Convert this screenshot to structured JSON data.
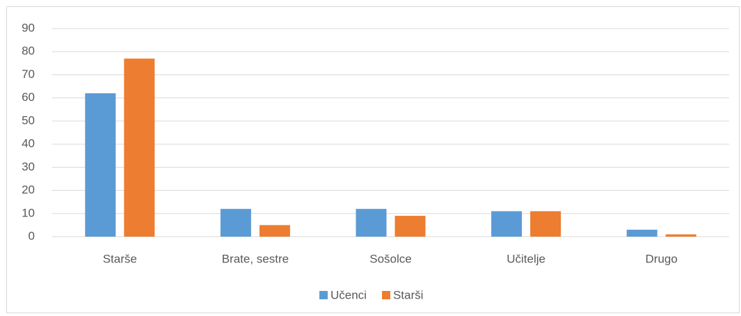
{
  "chart_data": {
    "type": "bar",
    "categories": [
      "Starše",
      "Brate, sestre",
      "Sošolce",
      "Učitelje",
      "Drugo"
    ],
    "series": [
      {
        "name": "Učenci",
        "color": "#5b9bd5",
        "values": [
          62,
          12,
          12,
          11,
          3
        ]
      },
      {
        "name": "Starši",
        "color": "#ed7d31",
        "values": [
          77,
          5,
          9,
          11,
          1
        ]
      }
    ],
    "ylim": [
      0,
      90
    ],
    "yticks": [
      0,
      10,
      20,
      30,
      40,
      50,
      60,
      70,
      80,
      90
    ],
    "grid": true,
    "legend": "bottom"
  }
}
